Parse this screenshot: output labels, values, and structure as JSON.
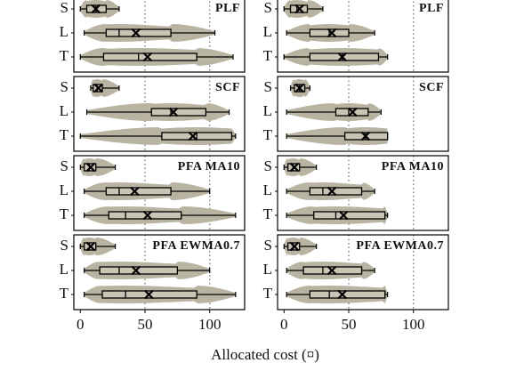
{
  "chart_data": {
    "type": "violin",
    "xlabel": "Allocated cost (¤)",
    "xlim": [
      -5,
      127
    ],
    "xticks": [
      0,
      50,
      100
    ],
    "reference_lines": [
      50,
      100
    ],
    "violin_color": "#b9b4a2",
    "box_color": "#c9c4b3",
    "panels": [
      {
        "title": "PLF",
        "categories": [
          "S",
          "L",
          "T"
        ],
        "min": [
          0,
          3,
          0
        ],
        "q1": [
          5,
          20,
          18
        ],
        "median": [
          12,
          30,
          45
        ],
        "q3": [
          20,
          70,
          90
        ],
        "max": [
          30,
          104,
          118
        ],
        "mean": [
          12,
          43,
          52
        ]
      },
      {
        "title": "PLF",
        "categories": [
          "S",
          "L",
          "T"
        ],
        "min": [
          0,
          2,
          0
        ],
        "q1": [
          5,
          20,
          20
        ],
        "median": [
          10,
          35,
          45
        ],
        "q3": [
          18,
          50,
          73
        ],
        "max": [
          30,
          70,
          80
        ],
        "mean": [
          12,
          37,
          45
        ]
      },
      {
        "title": "SCF",
        "categories": [
          "S",
          "L",
          "T"
        ],
        "min": [
          8,
          5,
          0
        ],
        "q1": [
          10,
          55,
          63
        ],
        "median": [
          13,
          70,
          90
        ],
        "q3": [
          17,
          97,
          117
        ],
        "max": [
          30,
          115,
          120
        ],
        "mean": [
          14,
          72,
          87
        ]
      },
      {
        "title": "SCF",
        "categories": [
          "S",
          "L",
          "T"
        ],
        "min": [
          5,
          2,
          2
        ],
        "q1": [
          8,
          40,
          47
        ],
        "median": [
          12,
          50,
          63
        ],
        "q3": [
          16,
          65,
          80
        ],
        "max": [
          20,
          75,
          80
        ],
        "mean": [
          12,
          53,
          63
        ]
      },
      {
        "title": "PFA MA10",
        "categories": [
          "S",
          "L",
          "T"
        ],
        "min": [
          0,
          3,
          3
        ],
        "q1": [
          3,
          20,
          22
        ],
        "median": [
          7,
          30,
          35
        ],
        "q3": [
          12,
          70,
          78
        ],
        "max": [
          27,
          100,
          120
        ],
        "mean": [
          8,
          42,
          52
        ]
      },
      {
        "title": "PFA MA10",
        "categories": [
          "S",
          "L",
          "T"
        ],
        "min": [
          0,
          2,
          2
        ],
        "q1": [
          3,
          20,
          23
        ],
        "median": [
          7,
          30,
          40
        ],
        "q3": [
          12,
          60,
          78
        ],
        "max": [
          25,
          70,
          80
        ],
        "mean": [
          8,
          37,
          46
        ]
      },
      {
        "title": "PFA EWMA0.7",
        "categories": [
          "S",
          "L",
          "T"
        ],
        "min": [
          0,
          3,
          3
        ],
        "q1": [
          3,
          15,
          17
        ],
        "median": [
          7,
          30,
          35
        ],
        "q3": [
          12,
          75,
          90
        ],
        "max": [
          27,
          100,
          120
        ],
        "mean": [
          8,
          43,
          53
        ]
      },
      {
        "title": "PFA EWMA0.7",
        "categories": [
          "S",
          "L",
          "T"
        ],
        "min": [
          0,
          2,
          2
        ],
        "q1": [
          3,
          15,
          20
        ],
        "median": [
          7,
          30,
          35
        ],
        "q3": [
          12,
          60,
          78
        ],
        "max": [
          25,
          70,
          80
        ],
        "mean": [
          8,
          37,
          45
        ]
      }
    ]
  }
}
